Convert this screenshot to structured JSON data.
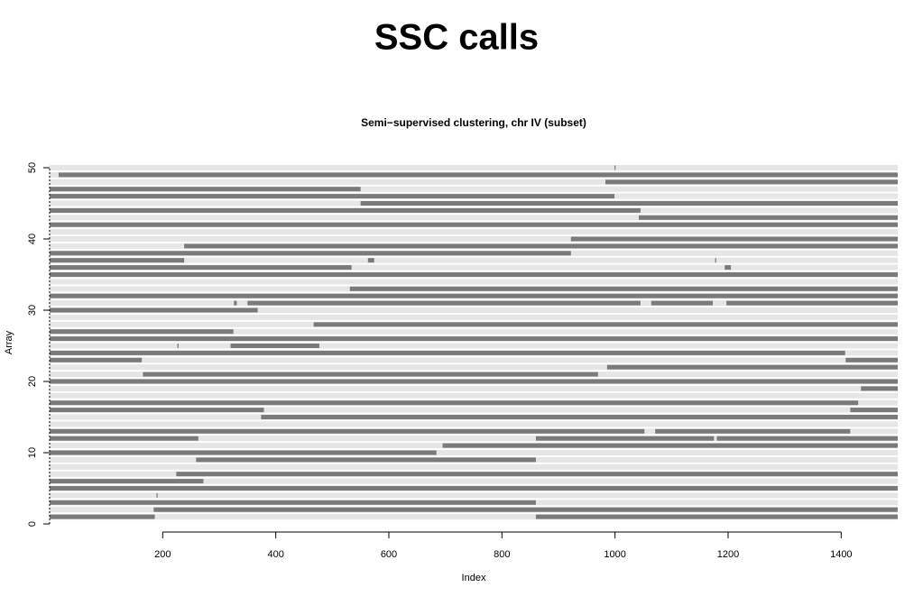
{
  "header": {
    "title": "SSC calls"
  },
  "chart_data": {
    "type": "segments",
    "title": "Semi−supervised clustering, chr IV (subset)",
    "x_label": "Index",
    "y_label": "Array",
    "xlim": [
      0,
      1500
    ],
    "ylim": [
      0,
      50
    ],
    "xticks": [
      200,
      400,
      600,
      800,
      1000,
      1200,
      1400
    ],
    "yticks": [
      0,
      10,
      20,
      30,
      40,
      50
    ],
    "band_color": "#e6e6e6",
    "color": "#7a7a7a",
    "rows": [
      {
        "array": 1,
        "segments": [
          [
            0,
            186
          ],
          [
            860,
            1500
          ]
        ]
      },
      {
        "array": 2,
        "segments": [
          [
            184,
            1500
          ]
        ]
      },
      {
        "array": 3,
        "segments": [
          [
            0,
            860
          ]
        ]
      },
      {
        "array": 4,
        "segments": [
          [
            189,
            191
          ]
        ]
      },
      {
        "array": 5,
        "segments": [
          [
            0,
            1500
          ]
        ]
      },
      {
        "array": 6,
        "segments": [
          [
            0,
            272
          ]
        ]
      },
      {
        "array": 7,
        "segments": [
          [
            224,
            1500
          ]
        ]
      },
      {
        "array": 8,
        "segments": []
      },
      {
        "array": 9,
        "segments": [
          [
            259,
            860
          ]
        ]
      },
      {
        "array": 10,
        "segments": [
          [
            0,
            684
          ]
        ]
      },
      {
        "array": 11,
        "segments": [
          [
            695,
            1500
          ]
        ]
      },
      {
        "array": 12,
        "segments": [
          [
            0,
            263
          ],
          [
            860,
            1175
          ],
          [
            1180,
            1500
          ]
        ]
      },
      {
        "array": 13,
        "segments": [
          [
            0,
            1052
          ],
          [
            1071,
            1416
          ]
        ]
      },
      {
        "array": 14,
        "segments": []
      },
      {
        "array": 15,
        "segments": [
          [
            374,
            1500
          ]
        ]
      },
      {
        "array": 16,
        "segments": [
          [
            0,
            379
          ],
          [
            1416,
            1500
          ]
        ]
      },
      {
        "array": 17,
        "segments": [
          [
            0,
            1430
          ]
        ]
      },
      {
        "array": 18,
        "segments": []
      },
      {
        "array": 19,
        "segments": [
          [
            1435,
            1500
          ]
        ]
      },
      {
        "array": 20,
        "segments": [
          [
            0,
            1500
          ]
        ]
      },
      {
        "array": 21,
        "segments": [
          [
            165,
            970
          ]
        ]
      },
      {
        "array": 22,
        "segments": [
          [
            986,
            1500
          ]
        ]
      },
      {
        "array": 23,
        "segments": [
          [
            0,
            163
          ],
          [
            1408,
            1500
          ]
        ]
      },
      {
        "array": 24,
        "segments": [
          [
            0,
            1407
          ]
        ]
      },
      {
        "array": 25,
        "segments": [
          [
            226,
            228
          ],
          [
            320,
            477
          ]
        ]
      },
      {
        "array": 26,
        "segments": [
          [
            0,
            1500
          ]
        ]
      },
      {
        "array": 27,
        "segments": [
          [
            0,
            325
          ]
        ]
      },
      {
        "array": 28,
        "segments": [
          [
            467,
            1500
          ]
        ]
      },
      {
        "array": 29,
        "segments": []
      },
      {
        "array": 30,
        "segments": [
          [
            0,
            368
          ]
        ]
      },
      {
        "array": 31,
        "segments": [
          [
            326,
            331
          ],
          [
            350,
            1045
          ],
          [
            1064,
            1173
          ],
          [
            1197,
            1500
          ]
        ]
      },
      {
        "array": 32,
        "segments": [
          [
            0,
            1500
          ]
        ]
      },
      {
        "array": 33,
        "segments": [
          [
            531,
            1500
          ]
        ]
      },
      {
        "array": 34,
        "segments": []
      },
      {
        "array": 35,
        "segments": [
          [
            0,
            1500
          ]
        ]
      },
      {
        "array": 36,
        "segments": [
          [
            0,
            534
          ],
          [
            1194,
            1205
          ]
        ]
      },
      {
        "array": 37,
        "segments": [
          [
            0,
            238
          ],
          [
            563,
            574
          ],
          [
            1177,
            1179
          ]
        ]
      },
      {
        "array": 38,
        "segments": [
          [
            0,
            922
          ]
        ]
      },
      {
        "array": 39,
        "segments": [
          [
            238,
            1500
          ]
        ]
      },
      {
        "array": 40,
        "segments": [
          [
            922,
            1500
          ]
        ]
      },
      {
        "array": 41,
        "segments": []
      },
      {
        "array": 42,
        "segments": [
          [
            0,
            1500
          ]
        ]
      },
      {
        "array": 43,
        "segments": [
          [
            1042,
            1500
          ]
        ]
      },
      {
        "array": 44,
        "segments": [
          [
            0,
            1045
          ]
        ]
      },
      {
        "array": 45,
        "segments": [
          [
            550,
            1500
          ]
        ]
      },
      {
        "array": 46,
        "segments": [
          [
            0,
            999
          ]
        ]
      },
      {
        "array": 47,
        "segments": [
          [
            0,
            550
          ]
        ]
      },
      {
        "array": 48,
        "segments": [
          [
            983,
            1500
          ]
        ]
      },
      {
        "array": 49,
        "segments": [
          [
            16,
            1500
          ]
        ]
      },
      {
        "array": 50,
        "segments": [
          [
            999,
            1001
          ]
        ]
      }
    ]
  }
}
